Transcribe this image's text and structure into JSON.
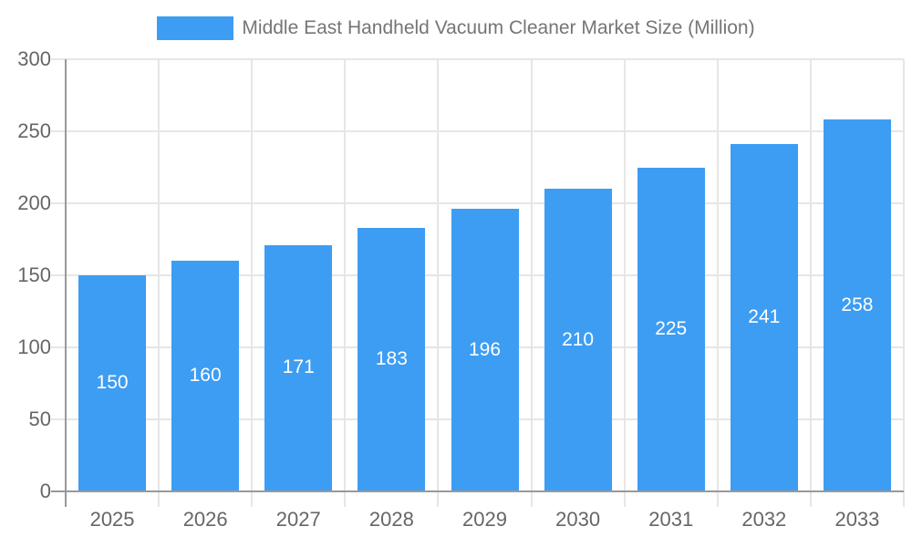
{
  "legend": {
    "label": "Middle East Handheld Vacuum Cleaner Market Size (Million)"
  },
  "chart_data": {
    "type": "bar",
    "title": "Middle East Handheld Vacuum Cleaner Market Size (Million)",
    "categories": [
      "2025",
      "2026",
      "2027",
      "2028",
      "2029",
      "2030",
      "2031",
      "2032",
      "2033"
    ],
    "values": [
      150,
      160,
      171,
      183,
      196,
      210,
      225,
      241,
      258
    ],
    "xlabel": "",
    "ylabel": "",
    "ylim": [
      0,
      300
    ],
    "yticks": [
      0,
      50,
      100,
      150,
      200,
      250,
      300
    ],
    "grid": true,
    "legend_position": "top",
    "colors": {
      "bar": "#3D9DF3",
      "value_label": "#FFFFFF",
      "axis_line": "#999999",
      "gridline": "#E6E6E6",
      "tick_label": "#666666",
      "legend_text": "#757575",
      "background": "#FFFFFF"
    }
  }
}
